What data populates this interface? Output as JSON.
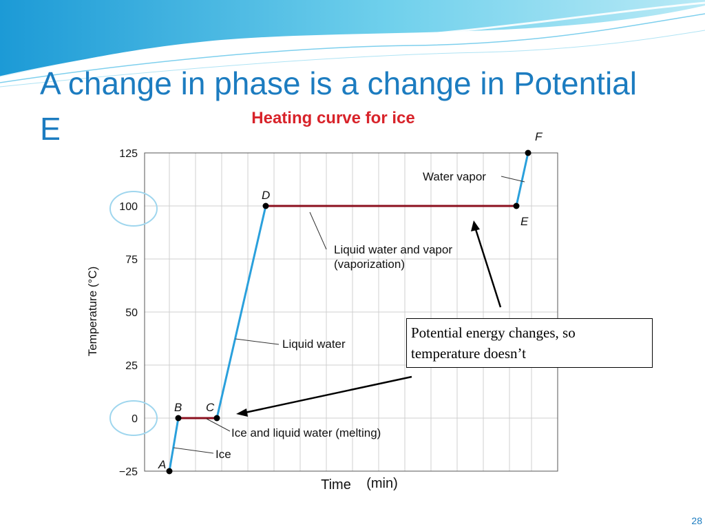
{
  "slide": {
    "title_line1": "A change in phase is a change in Potential",
    "title_line2": "E",
    "number": "28",
    "accent_color": "#1c7cc0"
  },
  "callout": {
    "line1": "Potential energy changes, so",
    "line2": "temperature doesn’t"
  },
  "chart_data": {
    "type": "line",
    "title": "Heating curve for ice",
    "xlabel": "Time",
    "xlabel_units": "(min)",
    "ylabel": "Temperature (°C)",
    "ylim": [
      -25,
      125
    ],
    "yticks": [
      "125",
      "100",
      "75",
      "50",
      "25",
      "0",
      "−25"
    ],
    "grid": true,
    "colors": {
      "rising": "#2aa0dc",
      "plateau": "#8b0f1e",
      "title": "#d8232a"
    },
    "points": [
      {
        "label": "A",
        "temp": -25
      },
      {
        "label": "B",
        "temp": 0
      },
      {
        "label": "C",
        "temp": 0
      },
      {
        "label": "D",
        "temp": 100
      },
      {
        "label": "E",
        "temp": 100
      },
      {
        "label": "F",
        "temp": 125
      }
    ],
    "annotations": [
      {
        "segment": "A-B",
        "text": "Ice"
      },
      {
        "segment": "B-C",
        "text": "Ice and liquid water (melting)"
      },
      {
        "segment": "C-D",
        "text": "Liquid water"
      },
      {
        "segment": "D-E",
        "text": "Liquid water and vapor"
      },
      {
        "segment": "D-E",
        "text": "(vaporization)"
      },
      {
        "segment": "E-F",
        "text": "Water vapor"
      }
    ]
  }
}
